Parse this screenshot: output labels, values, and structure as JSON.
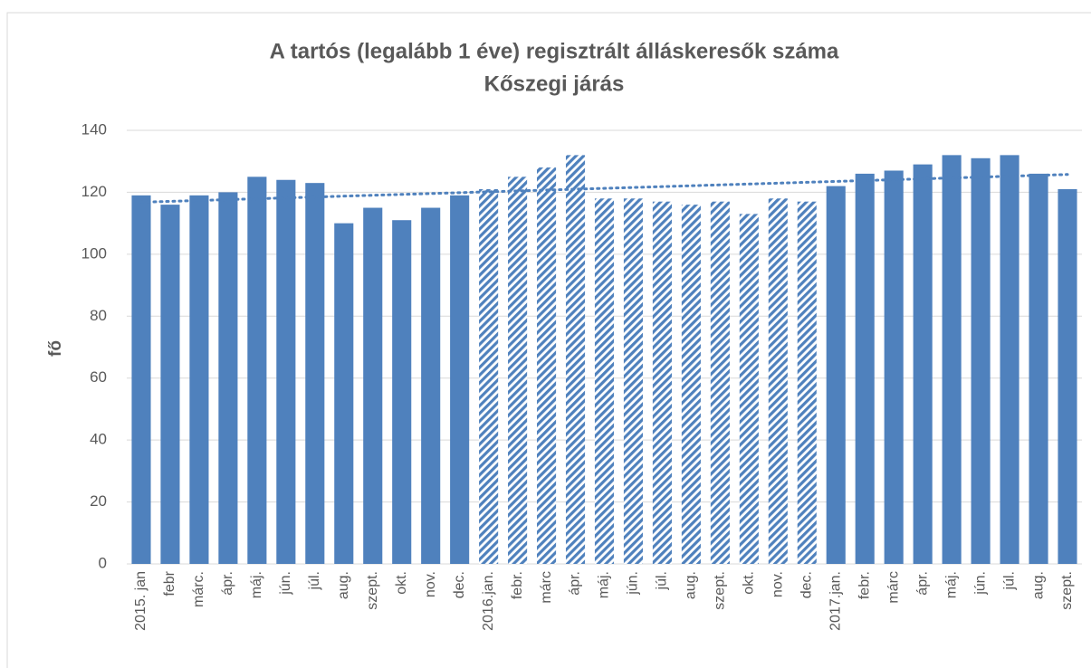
{
  "chart_data": {
    "type": "bar",
    "title": "A tartós (legalább 1 éve) regisztrált álláskeresők száma",
    "subtitle": "Kőszegi járás",
    "y_label": "fő",
    "categories": [
      "2015. jan",
      "febr",
      "márc.",
      "ápr.",
      "máj.",
      "jún.",
      "júl.",
      "aug.",
      "szept.",
      "okt.",
      "nov.",
      "dec.",
      "2016.jan.",
      "febr.",
      "márc",
      "ápr.",
      "máj.",
      "jún.",
      "júl.",
      "aug.",
      "szept.",
      "okt.",
      "nov.",
      "dec.",
      "2017.jan.",
      "febr.",
      "márc",
      "ápr.",
      "máj.",
      "jún.",
      "júl.",
      "aug.",
      "szept."
    ],
    "values": [
      119,
      116,
      119,
      120,
      125,
      124,
      123,
      110,
      115,
      111,
      115,
      119,
      121,
      125,
      128,
      132,
      118,
      118,
      117,
      116,
      117,
      113,
      118,
      117,
      122,
      126,
      127,
      129,
      132,
      131,
      132,
      126,
      121
    ],
    "fill_pattern": [
      "solid",
      "solid",
      "solid",
      "solid",
      "solid",
      "solid",
      "solid",
      "solid",
      "solid",
      "solid",
      "solid",
      "solid",
      "hatched",
      "hatched",
      "hatched",
      "hatched",
      "hatched",
      "hatched",
      "hatched",
      "hatched",
      "hatched",
      "hatched",
      "hatched",
      "hatched",
      "solid",
      "solid",
      "solid",
      "solid",
      "solid",
      "solid",
      "solid",
      "solid",
      "solid"
    ],
    "color": "#4f81bd",
    "trendline": "linear",
    "ylim": [
      0,
      140
    ],
    "yticks": [
      0,
      20,
      40,
      60,
      80,
      100,
      120,
      140
    ],
    "grid": true
  }
}
